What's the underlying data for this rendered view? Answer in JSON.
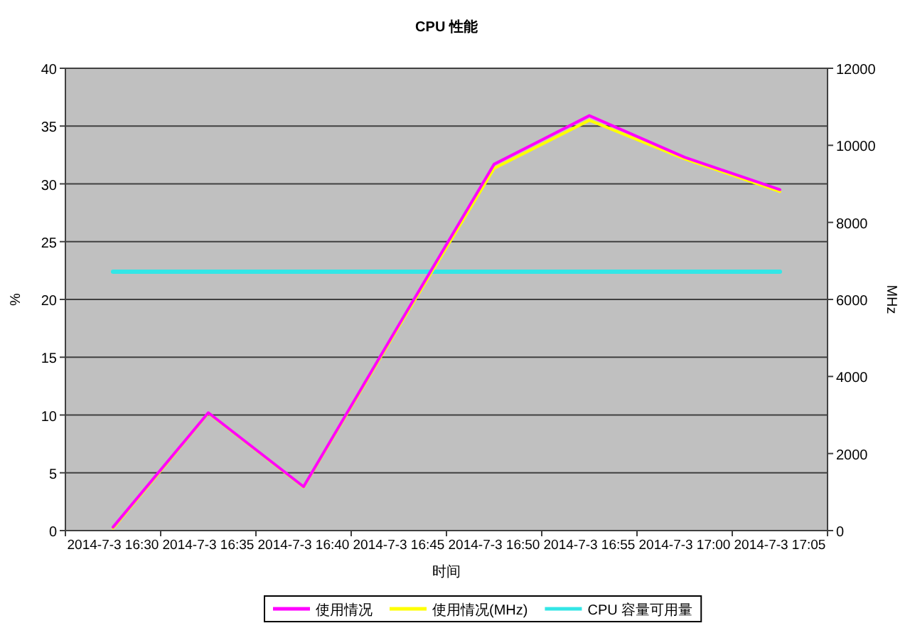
{
  "chart_data": {
    "type": "line",
    "title": "CPU 性能",
    "xlabel": "时间",
    "ylabel": "%",
    "y2label": "MHz",
    "categories": [
      "2014-7-3 16:30",
      "2014-7-3 16:35",
      "2014-7-3 16:40",
      "2014-7-3 16:45",
      "2014-7-3 16:50",
      "2014-7-3 16:55",
      "2014-7-3 17:00",
      "2014-7-3 17:05"
    ],
    "series": [
      {
        "name": "使用情况",
        "color": "#ff00ff",
        "values": [
          0.3,
          10.2,
          3.8,
          17.8,
          31.7,
          35.9,
          32.3,
          29.5
        ]
      },
      {
        "name": "使用情况(MHz)",
        "color": "#ffff00",
        "axis": "y2",
        "values": [
          60,
          3050,
          1130,
          5300,
          9400,
          10650,
          9650,
          8800
        ]
      },
      {
        "name": "CPU 容量可用量",
        "color": "#33e6e6",
        "axis": "y2",
        "values": [
          6720,
          6720,
          6720,
          6720,
          6720,
          6720,
          6720,
          6720
        ]
      }
    ],
    "ylim": [
      0,
      40
    ],
    "yticks": [
      0,
      5,
      10,
      15,
      20,
      25,
      30,
      35,
      40
    ],
    "y2lim": [
      0,
      12000
    ],
    "y2ticks": [
      0,
      2000,
      4000,
      6000,
      8000,
      10000,
      12000
    ],
    "grid": "y",
    "legend": "bottom",
    "marker": "none",
    "line_style": "solid"
  }
}
